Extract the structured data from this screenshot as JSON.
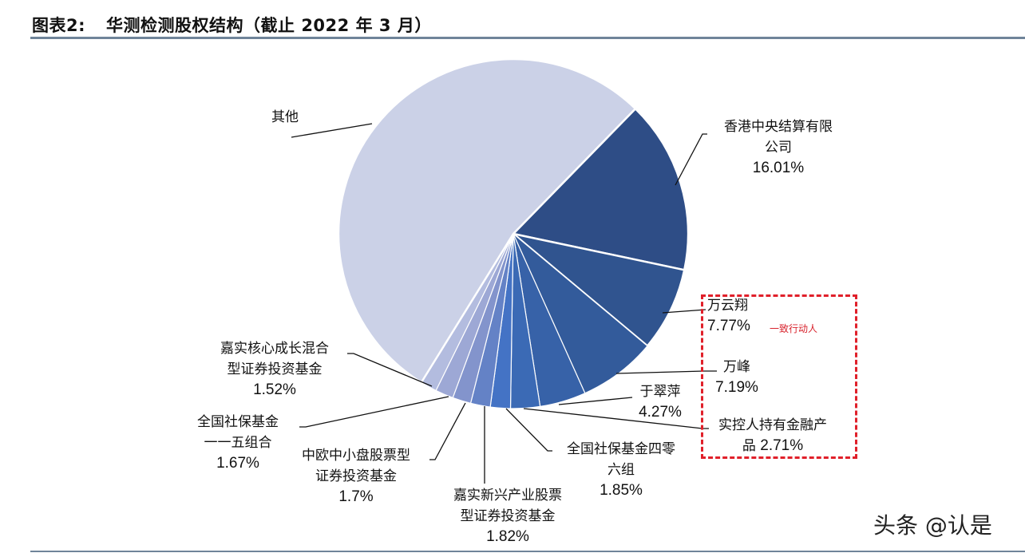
{
  "header": {
    "figure_no": "图表2:",
    "title": "华测检测股权结构（截止 2022 年 3 月）"
  },
  "annotation": {
    "group_note": "一致行动人",
    "group_note_color": "#d8222c"
  },
  "watermark": "头条 @认是",
  "chart_data": {
    "type": "pie",
    "title": "华测检测股权结构（截止 2022 年 3 月）",
    "start_angle_deg": 44.3,
    "direction": "clockwise",
    "slices": [
      {
        "name": "香港中央结算有限公司",
        "value": 16.01,
        "label_line1": "香港中央结算有限",
        "label_line2": "公司",
        "pct": "16.01%",
        "color": "#2e4d86"
      },
      {
        "name": "万云翔",
        "value": 7.77,
        "label_line1": "万云翔",
        "pct": "7.77%",
        "color": "#30548f"
      },
      {
        "name": "万峰",
        "value": 7.19,
        "label_line1": "万峰",
        "pct": "7.19%",
        "color": "#335b9b"
      },
      {
        "name": "于翠萍",
        "value": 4.27,
        "label_line1": "于翠萍",
        "pct": "4.27%",
        "color": "#3762a8"
      },
      {
        "name": "实控人持有金融产品",
        "value": 2.71,
        "label_line1": "实控人持有金融产",
        "label_line2": "品",
        "pct": "2.71%",
        "color": "#3b6ab5"
      },
      {
        "name": "全国社保基金四零六组",
        "value": 1.85,
        "label_line1": "全国社保基金四零",
        "label_line2": "六组",
        "pct": "1.85%",
        "color": "#4473c5"
      },
      {
        "name": "嘉实新兴产业股票型证券投资基金",
        "value": 1.82,
        "label_line1": "嘉实新兴产业股票",
        "label_line2": "型证券投资基金",
        "pct": "1.82%",
        "color": "#6482c6"
      },
      {
        "name": "中欧中小盘股票型证券投资基金",
        "value": 1.7,
        "label_line1": "中欧中小盘股票型",
        "label_line2": "证券投资基金",
        "pct": "1.7%",
        "color": "#8394cc"
      },
      {
        "name": "全国社保基金一一五组合",
        "value": 1.67,
        "label_line1": "全国社保基金",
        "label_line2": "一一五组合",
        "pct": "1.67%",
        "color": "#9da8d5"
      },
      {
        "name": "嘉实核心成长混合型证券投资基金",
        "value": 1.52,
        "label_line1": "嘉实核心成长混合",
        "label_line2": "型证券投资基金",
        "pct": "1.52%",
        "color": "#b3bcdf"
      },
      {
        "name": "其他",
        "value": 53.49,
        "label_line1": "其他",
        "pct": "",
        "color": "#cbd1e7"
      }
    ],
    "legend": "none",
    "data_labels": "outside with leader lines"
  }
}
